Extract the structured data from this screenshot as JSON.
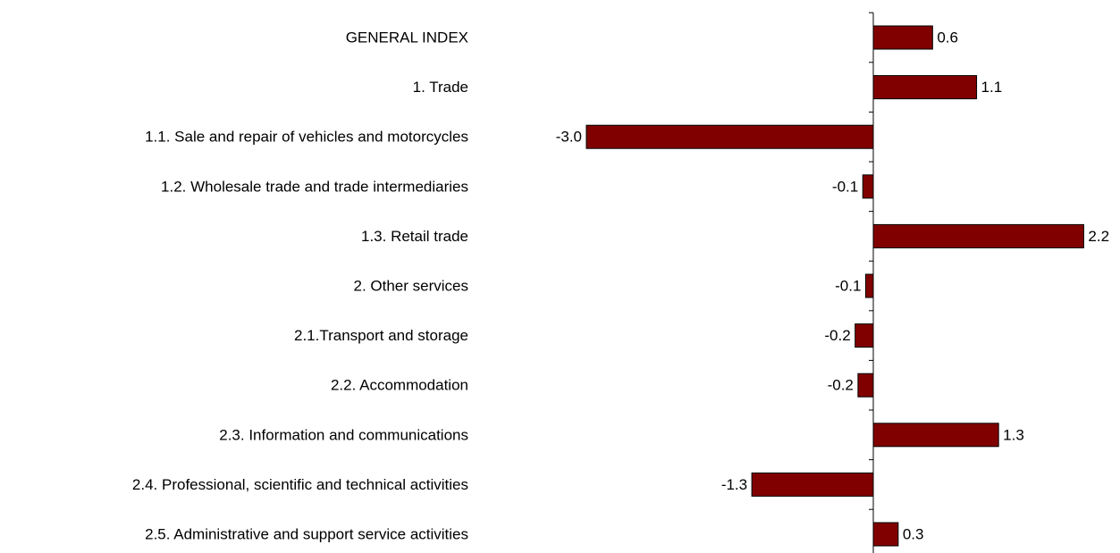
{
  "chart_data": {
    "type": "barh",
    "categories": [
      "GENERAL INDEX",
      "1. Trade",
      "1.1. Sale and repair of vehicles and motorcycles",
      "1.2. Wholesale trade and trade intermediaries",
      "1.3. Retail trade",
      "2. Other services",
      "2.1.Transport and storage",
      "2.2. Accommodation",
      "2.3. Information and communications",
      "2.4. Professional, scientific and technical activities",
      "2.5. Administrative and support service activities"
    ],
    "values": [
      0.62,
      1.08,
      -3.0,
      -0.11,
      2.2,
      -0.08,
      -0.19,
      -0.16,
      1.31,
      -1.27,
      0.26
    ],
    "value_labels": [
      "0.6",
      "1.1",
      "-3.0",
      "-0.1",
      "2.2",
      "-0.1",
      "-0.2",
      "-0.2",
      "1.3",
      "-1.3",
      "0.3"
    ],
    "color": "#800000",
    "xlim": [
      -3.2,
      2.5
    ]
  }
}
